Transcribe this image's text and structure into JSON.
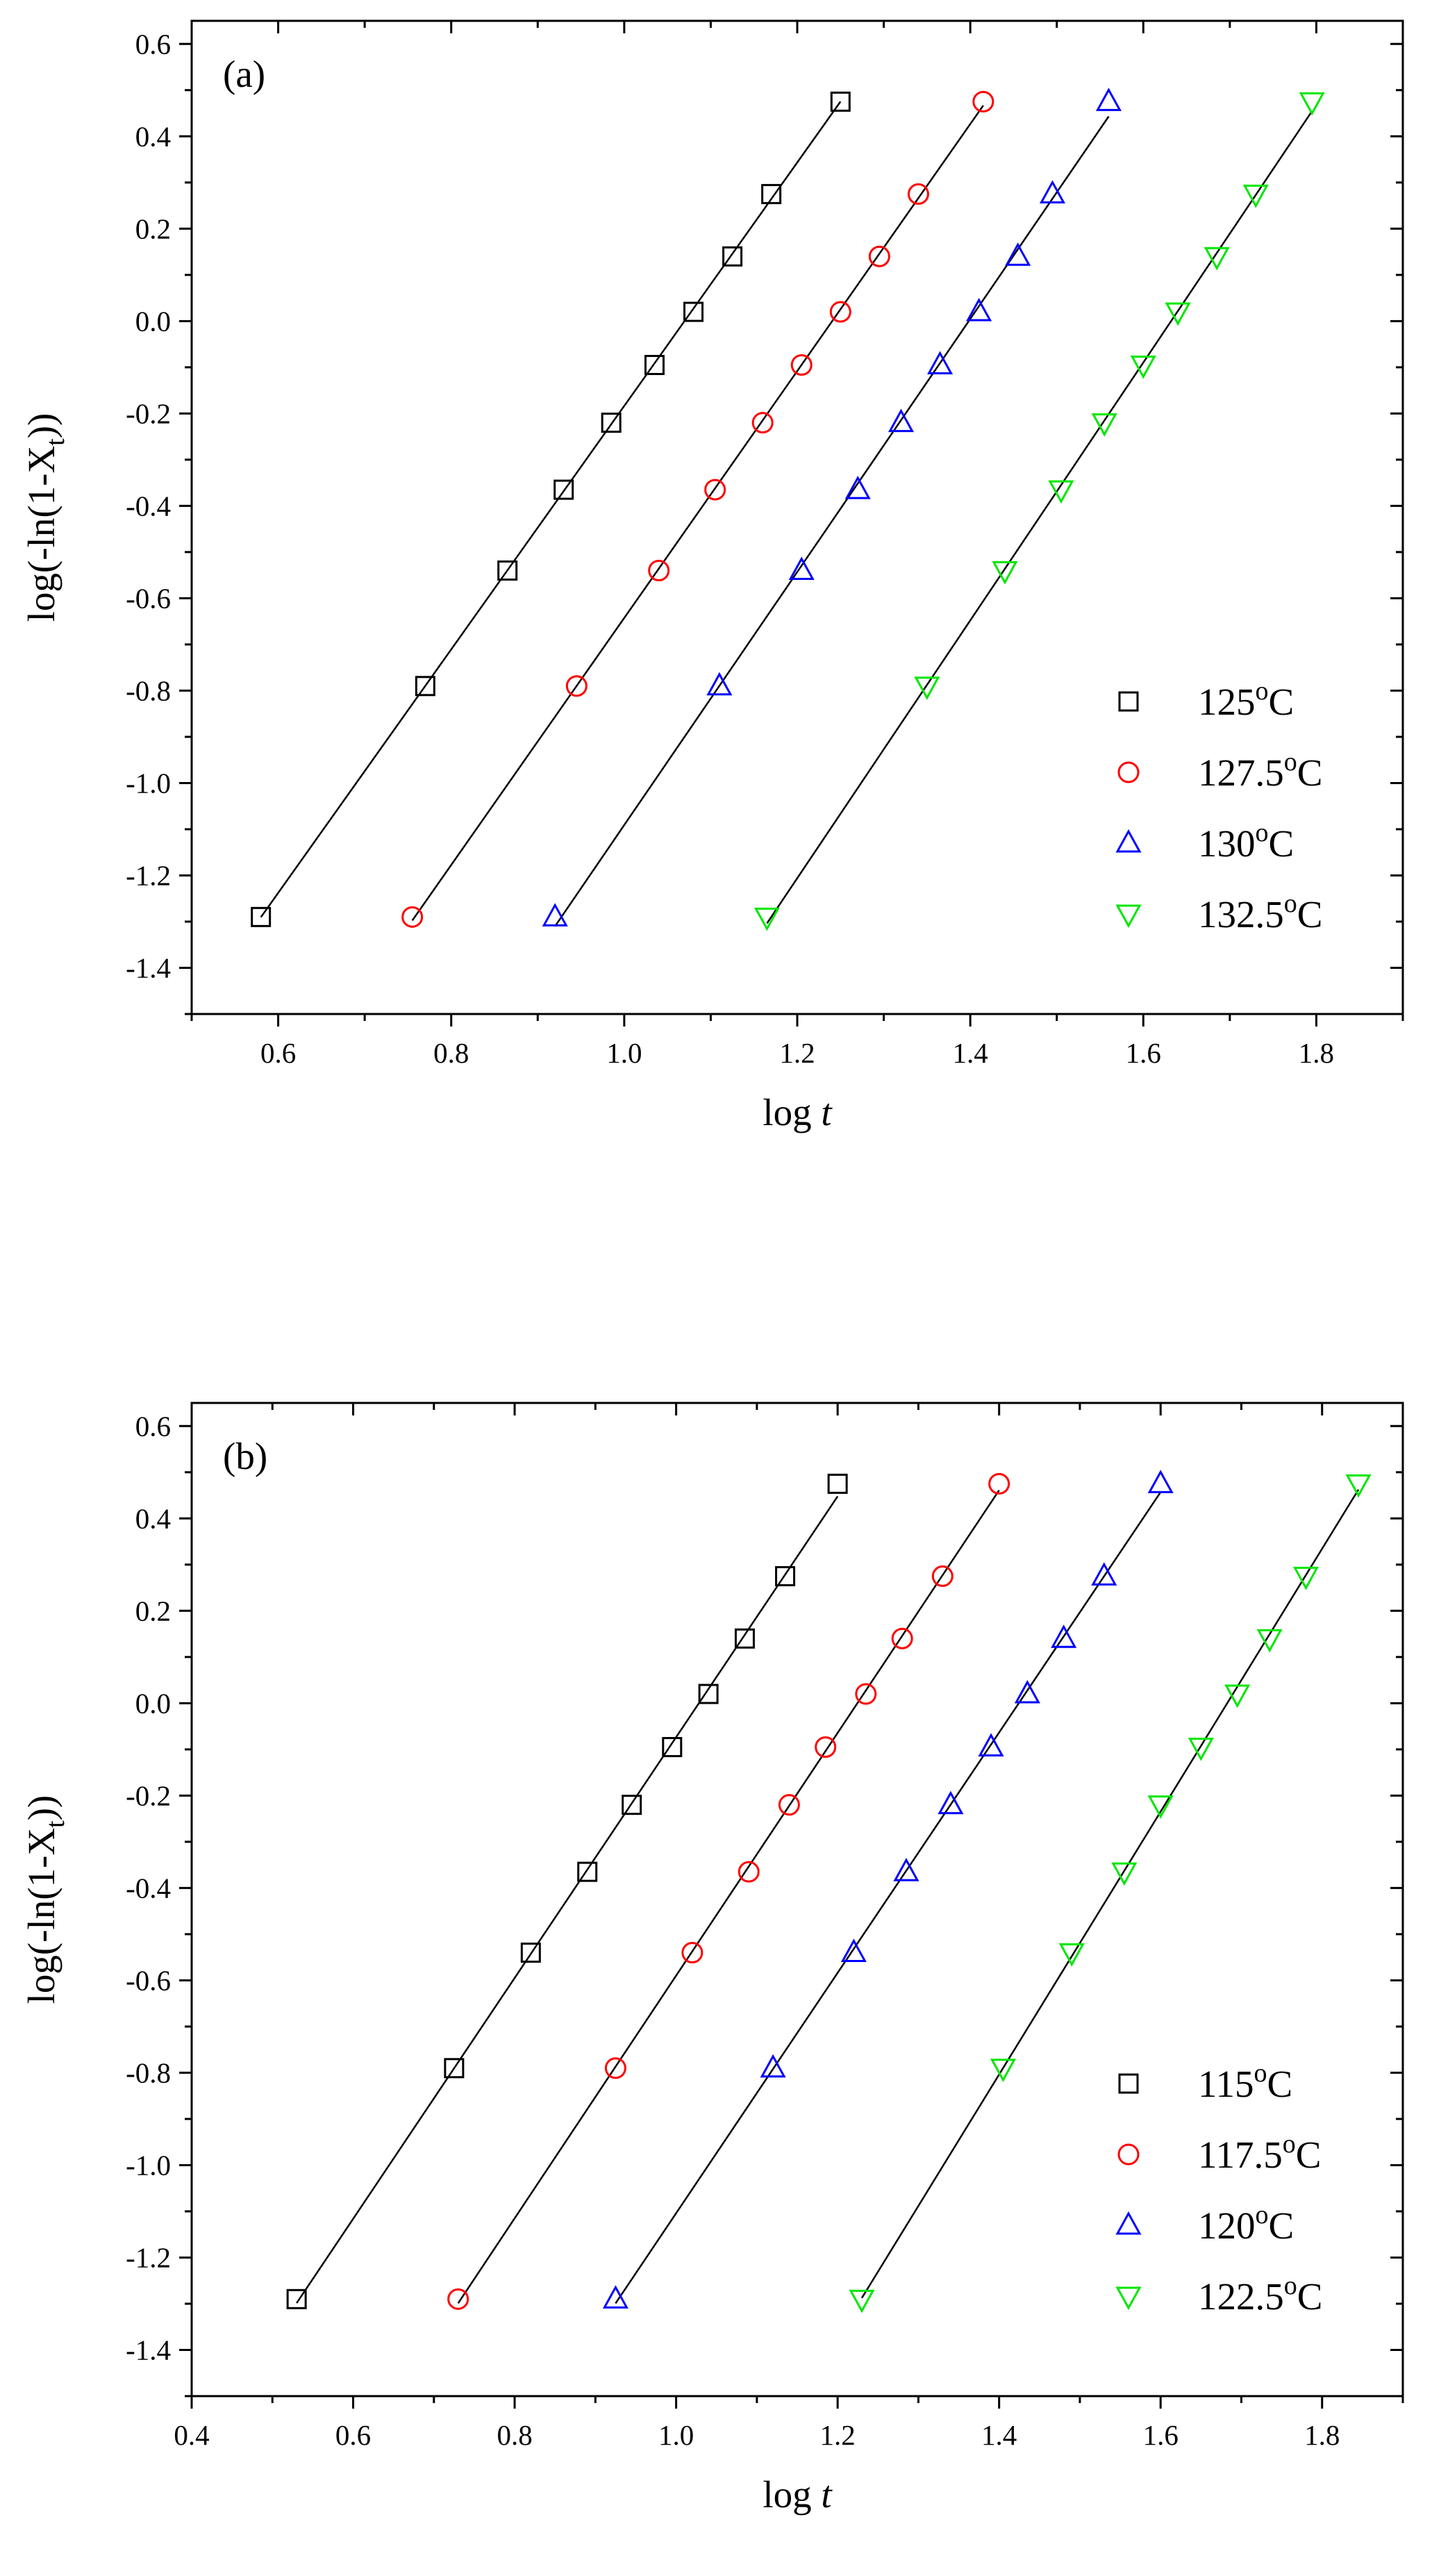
{
  "colors": {
    "series1": "#000000",
    "series2": "#ff0000",
    "series3": "#0000ff",
    "series4": "#00e600",
    "fit_line": "#000000"
  },
  "chart_data": [
    {
      "type": "scatter",
      "panel_label": "(a)",
      "xlabel": "log",
      "xlabel_var": "t",
      "ylabel": "log(-ln(1-X",
      "ylabel_sub": "t",
      "ylabel_end": "))",
      "xlim": [
        0.5,
        1.9
      ],
      "ylim": [
        -1.5,
        0.65
      ],
      "xticks": [
        0.6,
        0.8,
        1.0,
        1.2,
        1.4,
        1.6,
        1.8
      ],
      "xtick_labels": [
        "0.6",
        "0.8",
        "1.0",
        "1.2",
        "1.4",
        "1.6",
        "1.8"
      ],
      "yticks": [
        -1.4,
        -1.2,
        -1.0,
        -0.8,
        -0.6,
        -0.4,
        -0.2,
        0.0,
        0.2,
        0.4,
        0.6
      ],
      "ytick_labels": [
        "-1.4",
        "-1.2",
        "-1.0",
        "-0.8",
        "-0.6",
        "-0.4",
        "-0.2",
        "0.0",
        "0.2",
        "0.4",
        "0.6"
      ],
      "legend_position": "bottom-right",
      "series": [
        {
          "name": "125",
          "unit": "C",
          "marker": "square",
          "x": [
            0.58,
            0.77,
            0.865,
            0.93,
            0.985,
            1.035,
            1.08,
            1.125,
            1.17,
            1.25
          ],
          "y": [
            -1.29,
            -0.79,
            -0.54,
            -0.365,
            -0.22,
            -0.095,
            0.02,
            0.14,
            0.275,
            0.475
          ]
        },
        {
          "name": "127.5",
          "unit": "C",
          "marker": "circle",
          "x": [
            0.755,
            0.945,
            1.04,
            1.105,
            1.16,
            1.205,
            1.25,
            1.295,
            1.34,
            1.415
          ],
          "y": [
            -1.29,
            -0.79,
            -0.54,
            -0.365,
            -0.22,
            -0.095,
            0.02,
            0.14,
            0.275,
            0.475
          ]
        },
        {
          "name": "130",
          "unit": "C",
          "marker": "triangle-up",
          "x": [
            0.92,
            1.11,
            1.205,
            1.27,
            1.32,
            1.365,
            1.41,
            1.455,
            1.495,
            1.56
          ],
          "y": [
            -1.29,
            -0.79,
            -0.54,
            -0.365,
            -0.22,
            -0.095,
            0.02,
            0.14,
            0.275,
            0.475
          ]
        },
        {
          "name": "132.5",
          "unit": "C",
          "marker": "triangle-down",
          "x": [
            1.165,
            1.35,
            1.44,
            1.505,
            1.555,
            1.6,
            1.64,
            1.685,
            1.73,
            1.795
          ],
          "y": [
            -1.29,
            -0.79,
            -0.54,
            -0.365,
            -0.22,
            -0.095,
            0.02,
            0.14,
            0.275,
            0.475
          ]
        }
      ]
    },
    {
      "type": "scatter",
      "panel_label": "(b)",
      "xlabel": "log",
      "xlabel_var": "t",
      "ylabel": "log(-ln(1-X",
      "ylabel_sub": "t",
      "ylabel_end": "))",
      "xlim": [
        0.4,
        1.9
      ],
      "ylim": [
        -1.5,
        0.65
      ],
      "xticks": [
        0.4,
        0.6,
        0.8,
        1.0,
        1.2,
        1.4,
        1.6,
        1.8
      ],
      "xtick_labels": [
        "0.4",
        "0.6",
        "0.8",
        "1.0",
        "1.2",
        "1.4",
        "1.6",
        "1.8"
      ],
      "yticks": [
        -1.4,
        -1.2,
        -1.0,
        -0.8,
        -0.6,
        -0.4,
        -0.2,
        0.0,
        0.2,
        0.4,
        0.6
      ],
      "ytick_labels": [
        "-1.4",
        "-1.2",
        "-1.0",
        "-0.8",
        "-0.6",
        "-0.4",
        "-0.2",
        "0.0",
        "0.2",
        "0.4",
        "0.6"
      ],
      "legend_position": "bottom-right",
      "series": [
        {
          "name": "115",
          "unit": "C",
          "marker": "square",
          "x": [
            0.53,
            0.725,
            0.82,
            0.89,
            0.945,
            0.995,
            1.04,
            1.085,
            1.135,
            1.2
          ],
          "y": [
            -1.29,
            -0.79,
            -0.54,
            -0.365,
            -0.22,
            -0.095,
            0.02,
            0.14,
            0.275,
            0.475
          ]
        },
        {
          "name": "117.5",
          "unit": "C",
          "marker": "circle",
          "x": [
            0.73,
            0.925,
            1.02,
            1.09,
            1.14,
            1.185,
            1.235,
            1.28,
            1.33,
            1.4
          ],
          "y": [
            -1.29,
            -0.79,
            -0.54,
            -0.365,
            -0.22,
            -0.095,
            0.02,
            0.14,
            0.275,
            0.475
          ]
        },
        {
          "name": "120",
          "unit": "C",
          "marker": "triangle-up",
          "x": [
            0.925,
            1.12,
            1.22,
            1.285,
            1.34,
            1.39,
            1.435,
            1.48,
            1.53,
            1.6
          ],
          "y": [
            -1.29,
            -0.79,
            -0.54,
            -0.365,
            -0.22,
            -0.095,
            0.02,
            0.14,
            0.275,
            0.475
          ]
        },
        {
          "name": "122.5",
          "unit": "C",
          "marker": "triangle-down",
          "x": [
            1.23,
            1.405,
            1.49,
            1.555,
            1.6,
            1.65,
            1.695,
            1.735,
            1.78,
            1.845
          ],
          "y": [
            -1.29,
            -0.79,
            -0.54,
            -0.365,
            -0.22,
            -0.095,
            0.02,
            0.14,
            0.275,
            0.475
          ]
        }
      ]
    }
  ]
}
